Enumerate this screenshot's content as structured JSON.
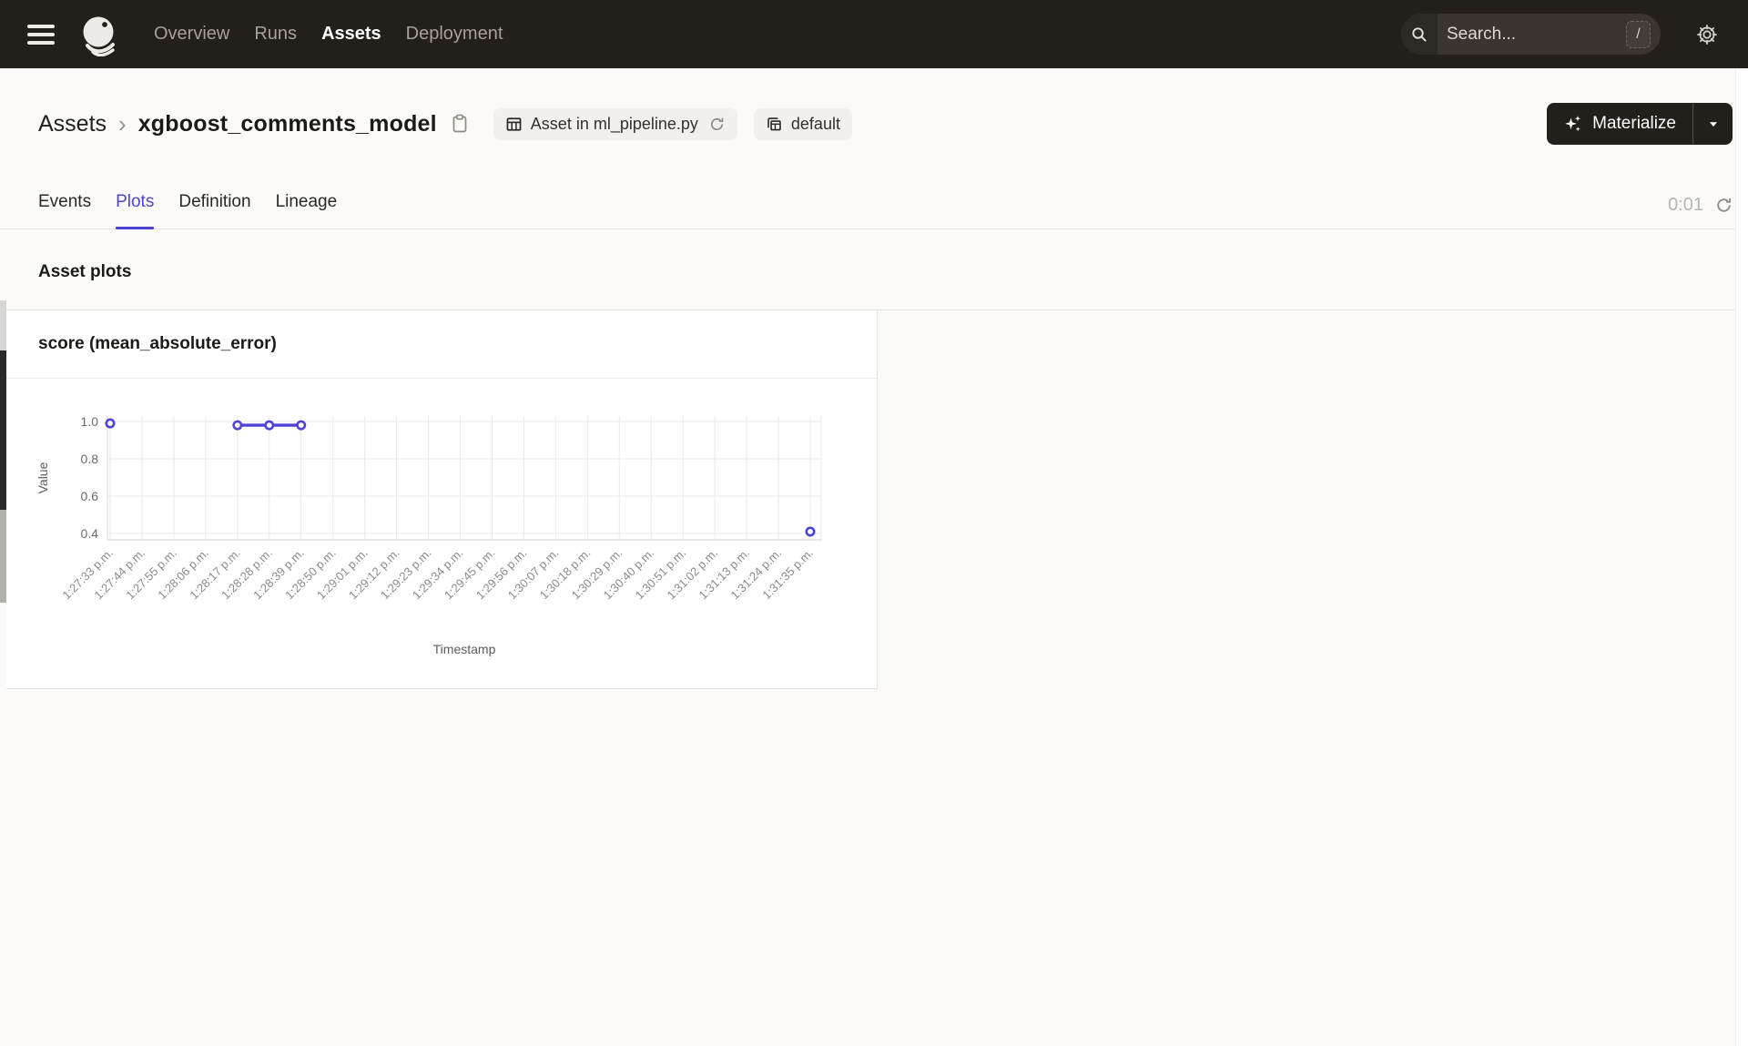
{
  "colors": {
    "accent": "#4f43d6",
    "header_bg": "#23201b",
    "line": "#4f43d6"
  },
  "header": {
    "nav_items": [
      {
        "label": "Overview",
        "active": false
      },
      {
        "label": "Runs",
        "active": false
      },
      {
        "label": "Assets",
        "active": true
      },
      {
        "label": "Deployment",
        "active": false
      }
    ],
    "search": {
      "placeholder": "Search...",
      "shortcut_key": "/"
    }
  },
  "breadcrumb": {
    "parent": "Assets",
    "separator": "›",
    "title": "xgboost_comments_model"
  },
  "asset_tags": {
    "code_location": {
      "label": "Asset in ml_pipeline.py"
    },
    "group": {
      "label": "default"
    }
  },
  "actions": {
    "materialize_label": "Materialize"
  },
  "tabs": {
    "items": [
      {
        "label": "Events",
        "active": false
      },
      {
        "label": "Plots",
        "active": true
      },
      {
        "label": "Definition",
        "active": false
      },
      {
        "label": "Lineage",
        "active": false
      }
    ],
    "refresh_timer": "0:01"
  },
  "section": {
    "title": "Asset plots"
  },
  "chart_data": {
    "type": "line",
    "title": "score (mean_absolute_error)",
    "xlabel": "Timestamp",
    "ylabel": "Value",
    "yticks": [
      0.4,
      0.6,
      0.8,
      1.0
    ],
    "ylim": [
      0.36,
      1.03
    ],
    "grid": true,
    "legend": false,
    "categories": [
      "1:27:33 p.m.",
      "1:27:44 p.m.",
      "1:27:55 p.m.",
      "1:28:06 p.m.",
      "1:28:17 p.m.",
      "1:28:28 p.m.",
      "1:28:39 p.m.",
      "1:28:50 p.m.",
      "1:29:01 p.m.",
      "1:29:12 p.m.",
      "1:29:23 p.m.",
      "1:29:34 p.m.",
      "1:29:45 p.m.",
      "1:29:56 p.m.",
      "1:30:07 p.m.",
      "1:30:18 p.m.",
      "1:30:29 p.m.",
      "1:30:40 p.m.",
      "1:30:51 p.m.",
      "1:31:02 p.m.",
      "1:31:13 p.m.",
      "1:31:24 p.m.",
      "1:31:35 p.m."
    ],
    "series": [
      {
        "name": "score (mean_absolute_error)",
        "color": "#4f43d6",
        "values": [
          0.99,
          null,
          null,
          null,
          0.98,
          0.98,
          0.98,
          null,
          null,
          null,
          null,
          null,
          null,
          null,
          null,
          null,
          null,
          null,
          null,
          null,
          null,
          null,
          0.41
        ]
      }
    ]
  }
}
